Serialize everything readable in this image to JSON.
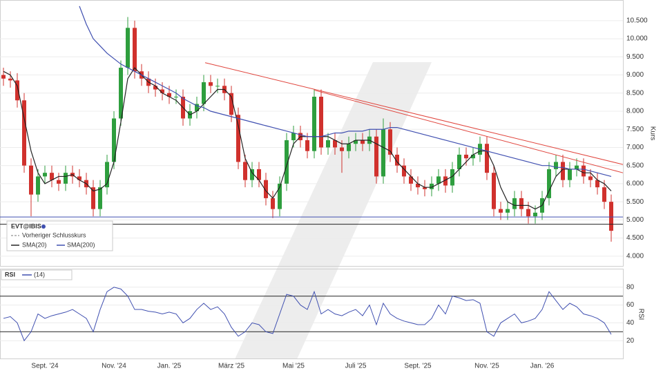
{
  "chart_data": [
    {
      "type": "candlestick",
      "ylabel": "Kurs",
      "categories": [
        null,
        null,
        null,
        null,
        null,
        null,
        "Sept. '24",
        null,
        null,
        null,
        null,
        null,
        null,
        null,
        null,
        null,
        "Nov. '24",
        null,
        null,
        null,
        null,
        null,
        null,
        null,
        "Jan. '25",
        null,
        null,
        null,
        null,
        null,
        null,
        null,
        null,
        "März '25",
        null,
        null,
        null,
        null,
        null,
        null,
        null,
        null,
        "Mai '25",
        null,
        null,
        null,
        null,
        null,
        null,
        null,
        null,
        "Juli '25",
        null,
        null,
        null,
        null,
        null,
        null,
        null,
        null,
        "Sept. '25",
        null,
        null,
        null,
        null,
        null,
        null,
        null,
        null,
        null,
        "Nov. '25",
        null,
        null,
        null,
        null,
        null,
        null,
        null,
        "Jan. '26",
        null,
        null,
        null,
        null,
        null,
        null,
        null,
        null,
        null,
        null
      ],
      "ylim": [
        3730,
        11050
      ],
      "yticks": [
        {
          "value": 4000,
          "label": "4.000"
        },
        {
          "value": 4500,
          "label": "4.500"
        },
        {
          "value": 5000,
          "label": "5.000"
        },
        {
          "value": 5500,
          "label": "5.500"
        },
        {
          "value": 6000,
          "label": "6.000"
        },
        {
          "value": 6500,
          "label": "6.500"
        },
        {
          "value": 7000,
          "label": "7.000"
        },
        {
          "value": 7500,
          "label": "7.500"
        },
        {
          "value": 8000,
          "label": "8.000"
        },
        {
          "value": 8500,
          "label": "8.500"
        },
        {
          "value": 9000,
          "label": "9.000"
        },
        {
          "value": 9500,
          "label": "9.500"
        },
        {
          "value": 10000,
          "label": "10.000"
        },
        {
          "value": 10500,
          "label": "10.500"
        }
      ],
      "up_color": "#2e9e3e",
      "down_color": "#d0312d",
      "ohlc": {
        "name": "EVT@IBIS",
        "open": [
          9000,
          8900,
          8850,
          8300,
          6500,
          5700,
          6200,
          6300,
          6100,
          6000,
          6300,
          6200,
          6100,
          5900,
          5300,
          5900,
          6600,
          7800,
          9200,
          10300,
          9100,
          8900,
          8700,
          8600,
          8500,
          8400,
          8400,
          7800,
          8000,
          8200,
          8800,
          8700,
          8700,
          8500,
          7900,
          6600,
          6100,
          6400,
          6100,
          5600,
          5300,
          6000,
          7200,
          7400,
          7200,
          6900,
          8400,
          7000,
          7200,
          7000,
          6900,
          7100,
          7200,
          7100,
          7300,
          6200,
          7500,
          6800,
          6500,
          6200,
          6000,
          5900,
          5850,
          6000,
          6200,
          5950,
          6400,
          6800,
          6700,
          6800,
          7100,
          6300,
          5300,
          5200,
          5300,
          5600,
          5300,
          5100,
          5200,
          5600,
          6400,
          6600,
          6100,
          6400,
          6500,
          6200,
          6100,
          5900,
          5500
        ],
        "high": [
          9200,
          9100,
          9050,
          8500,
          6700,
          6400,
          6500,
          6500,
          6300,
          6500,
          6500,
          6400,
          6300,
          6100,
          6100,
          6800,
          8000,
          9400,
          10600,
          10500,
          9300,
          9100,
          8900,
          8800,
          8700,
          8600,
          8600,
          8200,
          8400,
          9000,
          9000,
          8900,
          8900,
          8700,
          8100,
          6800,
          6600,
          6600,
          6300,
          5800,
          6200,
          7400,
          7600,
          7600,
          7400,
          8600,
          8600,
          7400,
          7400,
          7200,
          7300,
          7400,
          7400,
          7500,
          7500,
          7800,
          7700,
          7000,
          6700,
          6400,
          6200,
          6100,
          6200,
          6400,
          6400,
          6600,
          7000,
          7000,
          7000,
          7300,
          7300,
          6500,
          5500,
          5500,
          5800,
          5800,
          5500,
          5400,
          5800,
          6600,
          6800,
          6800,
          6600,
          6700,
          6700,
          6400,
          6300,
          6100,
          5700
        ],
        "low": [
          8700,
          8650,
          8100,
          6300,
          5100,
          5500,
          6000,
          5900,
          5800,
          5800,
          6000,
          5900,
          5700,
          5100,
          5100,
          5700,
          6400,
          7600,
          9000,
          8900,
          8700,
          8500,
          8400,
          8300,
          8200,
          8200,
          7600,
          7600,
          7800,
          8000,
          8500,
          8500,
          8300,
          7700,
          6400,
          5900,
          5900,
          5900,
          5400,
          5050,
          5100,
          5800,
          7000,
          7000,
          6700,
          6700,
          6800,
          6800,
          6800,
          6300,
          6700,
          6900,
          6900,
          6900,
          6000,
          6000,
          6600,
          6300,
          6000,
          5800,
          5700,
          5650,
          5650,
          5800,
          5750,
          5750,
          6200,
          6500,
          6500,
          6600,
          6100,
          5100,
          5000,
          5000,
          5100,
          5100,
          4900,
          4900,
          5000,
          5400,
          6200,
          5900,
          5900,
          6200,
          6000,
          5900,
          5700,
          5300,
          4400
        ],
        "close": [
          8900,
          8850,
          8300,
          6500,
          5700,
          6200,
          6300,
          6100,
          6000,
          6300,
          6200,
          6100,
          5900,
          5300,
          5900,
          6600,
          7800,
          9200,
          10300,
          9100,
          8900,
          8700,
          8600,
          8500,
          8400,
          8400,
          7800,
          8000,
          8200,
          8800,
          8700,
          8700,
          8500,
          7900,
          6600,
          6100,
          6400,
          6100,
          5600,
          5300,
          6000,
          7200,
          7400,
          7200,
          6900,
          8400,
          7000,
          7200,
          7000,
          6900,
          7100,
          7200,
          7100,
          7300,
          6200,
          7500,
          6800,
          6500,
          6200,
          6000,
          5900,
          5850,
          6000,
          6200,
          5950,
          6400,
          6800,
          6700,
          6800,
          7100,
          6300,
          5300,
          5200,
          5300,
          5600,
          5300,
          5100,
          5200,
          5600,
          6400,
          6600,
          6100,
          6400,
          6500,
          6200,
          6100,
          5900,
          5500,
          4700
        ]
      },
      "reference_legend": {
        "name": "Vorheriger Schlusskurs",
        "color": "#777777"
      },
      "series": [
        {
          "name": "SMA(20)",
          "color": "#222222",
          "values": [
            9100,
            9000,
            8700,
            7800,
            6900,
            6300,
            6000,
            6100,
            6200,
            6200,
            6250,
            6100,
            6000,
            5800,
            5850,
            6000,
            6600,
            7700,
            8900,
            9200,
            9000,
            8800,
            8700,
            8500,
            8400,
            8300,
            8100,
            7900,
            8000,
            8200,
            8400,
            8600,
            8600,
            8400,
            7600,
            6700,
            6300,
            6100,
            5800,
            5600,
            5900,
            6500,
            7100,
            7300,
            7300,
            7300,
            7300,
            7300,
            7200,
            7100,
            7100,
            7200,
            7200,
            7200,
            7100,
            7000,
            6900,
            6600,
            6400,
            6200,
            6000,
            5900,
            5900,
            6000,
            6100,
            6200,
            6400,
            6600,
            6800,
            6900,
            6900,
            6500,
            5900,
            5500,
            5400,
            5400,
            5400,
            5300,
            5400,
            5800,
            6200,
            6400,
            6400,
            6400,
            6300,
            6300,
            6100,
            6000,
            5800
          ]
        },
        {
          "name": "SMA(200)",
          "color": "#3f4fb0",
          "values": [
            null,
            null,
            null,
            null,
            null,
            null,
            null,
            null,
            null,
            null,
            null,
            10900,
            10400,
            10000,
            9800,
            9600,
            9450,
            9300,
            9200,
            9100,
            9000,
            8900,
            8800,
            8700,
            8600,
            8500,
            8350,
            8250,
            8150,
            8100,
            8000,
            7950,
            7900,
            7850,
            7800,
            7750,
            7700,
            7650,
            7600,
            7550,
            7500,
            7450,
            7400,
            7350,
            7300,
            7300,
            7300,
            7350,
            7400,
            7400,
            7450,
            7450,
            7450,
            7500,
            7500,
            7500,
            7550,
            7550,
            7500,
            7450,
            7400,
            7350,
            7300,
            7250,
            7200,
            7150,
            7100,
            7050,
            7000,
            6950,
            6900,
            6850,
            6800,
            6750,
            6700,
            6650,
            6600,
            6550,
            6500,
            6500,
            6450,
            6450,
            6400,
            6400,
            6400,
            6350,
            6300,
            6250,
            6200
          ]
        }
      ],
      "hlines": [
        {
          "value": 5080,
          "color": "#3f4fb0"
        },
        {
          "value": 4880,
          "color": "#222222"
        }
      ],
      "trendlines": [
        {
          "color": "#e0443c",
          "points": [
            [
              29.2,
              9340
            ],
            [
              89.7,
              6530
            ]
          ]
        },
        {
          "color": "#e0443c",
          "points": [
            [
              45,
              8580
            ],
            [
              89.7,
              6300
            ]
          ]
        }
      ]
    },
    {
      "type": "line",
      "ylabel": "RSI",
      "period_label": "(14)",
      "ylim": [
        0,
        100
      ],
      "yticks": [
        20,
        40,
        60,
        80
      ],
      "levels": [
        30,
        70
      ],
      "series": [
        {
          "name": "RSI",
          "color": "#3f4fb0",
          "values": [
            45,
            47,
            40,
            20,
            30,
            50,
            45,
            48,
            50,
            52,
            55,
            50,
            45,
            30,
            55,
            75,
            80,
            78,
            70,
            55,
            55,
            53,
            52,
            50,
            52,
            50,
            40,
            45,
            55,
            62,
            55,
            58,
            50,
            35,
            25,
            30,
            40,
            38,
            30,
            28,
            50,
            72,
            70,
            60,
            55,
            75,
            50,
            55,
            50,
            48,
            52,
            55,
            48,
            60,
            38,
            62,
            50,
            45,
            42,
            40,
            38,
            38,
            45,
            60,
            50,
            70,
            68,
            65,
            66,
            62,
            30,
            25,
            40,
            45,
            50,
            40,
            42,
            45,
            55,
            75,
            65,
            55,
            62,
            58,
            50,
            48,
            45,
            40,
            27
          ]
        }
      ]
    }
  ]
}
